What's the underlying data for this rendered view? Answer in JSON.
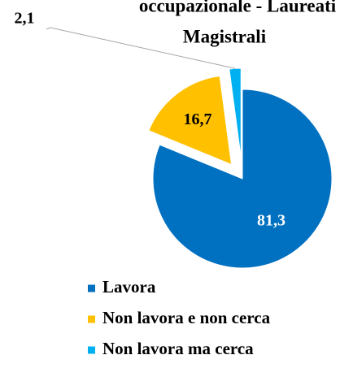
{
  "chart_data": {
    "type": "pie",
    "title_lines": [
      "occupazionale - Laureati",
      "Magistrali"
    ],
    "categories": [
      "Lavora",
      "Non lavora e non cerca",
      "Non lavora ma cerca"
    ],
    "values": [
      81.3,
      16.7,
      2.1
    ],
    "value_labels": [
      "81,3",
      "16,7",
      "2,1"
    ],
    "colors": [
      "#0070c0",
      "#ffc000",
      "#00b0f0"
    ],
    "legend": "bottom"
  }
}
